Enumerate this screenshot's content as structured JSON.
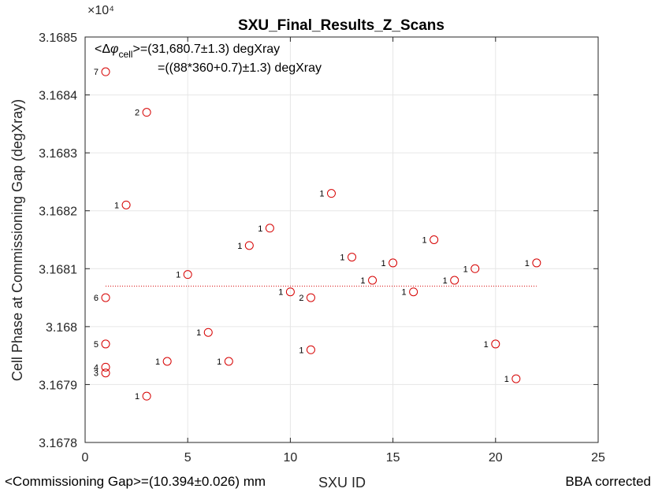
{
  "chart_data": {
    "type": "scatter",
    "title": "SXU_Final_Results_Z_Scans",
    "xlabel": "SXU ID",
    "ylabel": "Cell Phase at Commissioning Gap (degXray)",
    "y_exponent": "×10⁴",
    "xlim": [
      0,
      25
    ],
    "ylim": [
      3.1678,
      3.1685
    ],
    "xticks": [
      0,
      5,
      10,
      15,
      20,
      25
    ],
    "yticks": [
      3.1678,
      3.1679,
      3.168,
      3.1681,
      3.1682,
      3.1683,
      3.1684,
      3.1685
    ],
    "ytick_labels": [
      "3.1678",
      "3.1679",
      "3.168",
      "3.1681",
      "3.1682",
      "3.1683",
      "3.1684",
      "3.1685"
    ],
    "grid": true,
    "marker_color": "#d60000",
    "marker": "open-circle",
    "points": [
      {
        "x": 1,
        "y": 3.16844,
        "label": "7"
      },
      {
        "x": 1,
        "y": 3.16805,
        "label": "6"
      },
      {
        "x": 1,
        "y": 3.16797,
        "label": "5"
      },
      {
        "x": 1,
        "y": 3.16793,
        "label": "4"
      },
      {
        "x": 1,
        "y": 3.16792,
        "label": "3"
      },
      {
        "x": 2,
        "y": 3.16821,
        "label": "1"
      },
      {
        "x": 3,
        "y": 3.16837,
        "label": "2"
      },
      {
        "x": 3,
        "y": 3.16788,
        "label": "1"
      },
      {
        "x": 4,
        "y": 3.16794,
        "label": "1"
      },
      {
        "x": 5,
        "y": 3.16809,
        "label": "1"
      },
      {
        "x": 6,
        "y": 3.16799,
        "label": "1"
      },
      {
        "x": 7,
        "y": 3.16794,
        "label": "1"
      },
      {
        "x": 8,
        "y": 3.16814,
        "label": "1"
      },
      {
        "x": 9,
        "y": 3.16817,
        "label": "1"
      },
      {
        "x": 10,
        "y": 3.16806,
        "label": "1"
      },
      {
        "x": 11,
        "y": 3.16805,
        "label": "2"
      },
      {
        "x": 11,
        "y": 3.16796,
        "label": "1"
      },
      {
        "x": 12,
        "y": 3.16823,
        "label": "1"
      },
      {
        "x": 13,
        "y": 3.16812,
        "label": "1"
      },
      {
        "x": 14,
        "y": 3.16808,
        "label": "1"
      },
      {
        "x": 15,
        "y": 3.16811,
        "label": "1"
      },
      {
        "x": 16,
        "y": 3.16806,
        "label": "1"
      },
      {
        "x": 17,
        "y": 3.16815,
        "label": "1"
      },
      {
        "x": 18,
        "y": 3.16808,
        "label": "1"
      },
      {
        "x": 19,
        "y": 3.1681,
        "label": "1"
      },
      {
        "x": 20,
        "y": 3.16797,
        "label": "1"
      },
      {
        "x": 21,
        "y": 3.16791,
        "label": "1"
      },
      {
        "x": 22,
        "y": 3.16811,
        "label": "1"
      }
    ],
    "mean_line": {
      "y": 3.16807,
      "x_start": 1,
      "x_end": 22,
      "color": "#d60000",
      "style": "dotted"
    },
    "annotations": {
      "line1_prefix": "<Δ",
      "line1_phi": "φ",
      "line1_sub": "cell",
      "line1_suffix": ">=(31,680.7±1.3) degXray",
      "line2": "=((88*360+0.7)±1.3) degXray"
    }
  },
  "footer": {
    "left": "<Commissioning Gap>=(10.394±0.026) mm",
    "right": "BBA corrected"
  }
}
